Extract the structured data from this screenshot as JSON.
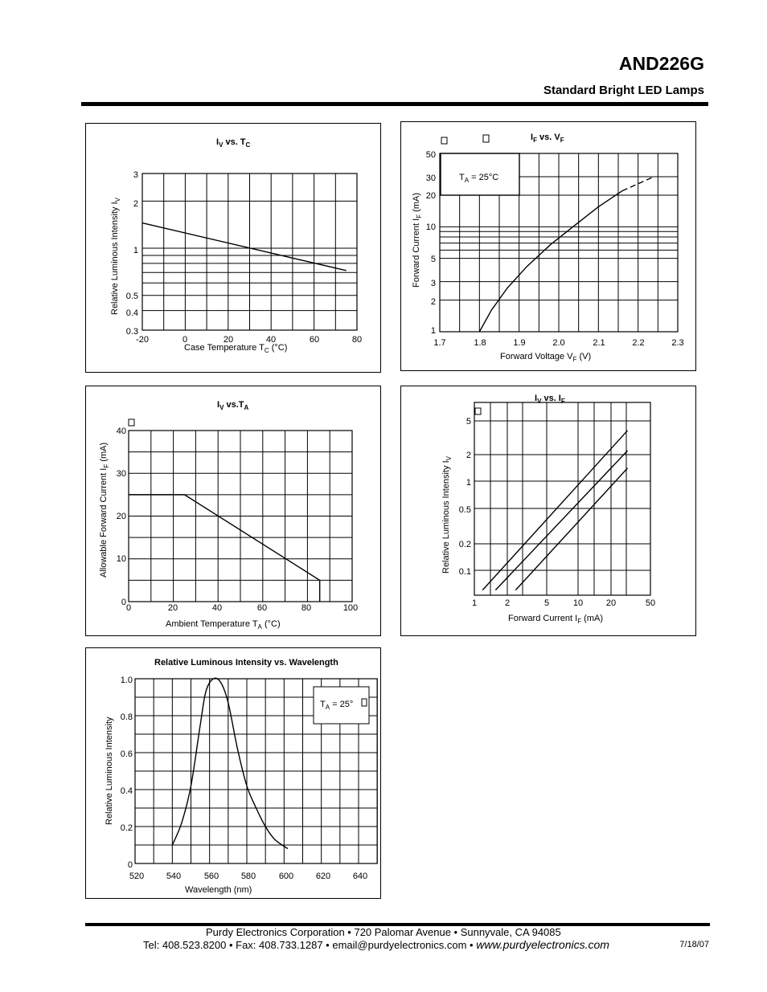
{
  "header": {
    "part_number": "AND226G",
    "subtitle": "Standard Bright LED Lamps"
  },
  "charts": {
    "iv_tc": {
      "title_main": "I",
      "title_sub1": "V",
      "title_mid": " vs. T",
      "title_sub2": "C",
      "ylabel_main": "Relative Luminous Intensity I",
      "ylabel_sub": "V",
      "xlabel_main": "Case Temperature T",
      "xlabel_sub": "C",
      "xlabel_end": " (°C)",
      "x_ticks": [
        "-20",
        "0",
        "20",
        "40",
        "60",
        "80"
      ],
      "y_ticks": [
        "3",
        "2",
        "1",
        "0.5",
        "0.4",
        "0.3"
      ]
    },
    "if_vf": {
      "title_main": "I",
      "title_sub1": "F",
      "title_mid": " vs. V",
      "title_sub2": "F",
      "ylabel_main": "Forward Current  I",
      "ylabel_sub": "F",
      "ylabel_end": "  (mA)",
      "xlabel_main": "Forward Voltage V",
      "xlabel_sub": "F",
      "xlabel_end": "  (V)",
      "x_ticks": [
        "1.7",
        "1.8",
        "1.9",
        "2.0",
        "2.1",
        "2.2",
        "2.3"
      ],
      "y_ticks": [
        "50",
        "30",
        "20",
        "10",
        "5",
        "3",
        "2",
        "1"
      ],
      "condition_main": "T",
      "condition_sub": "A",
      "condition_end": " = 25°C"
    },
    "iv_ta": {
      "title_main": "I",
      "title_sub1": "V",
      "title_mid": " vs.T",
      "title_sub2": "A",
      "ylabel_main": "Allowable Forward Current I",
      "ylabel_sub": "F",
      "ylabel_end": " (mA)",
      "xlabel_main": "Ambient Temperature T",
      "xlabel_sub": "A",
      "xlabel_end": " (°C)",
      "x_ticks": [
        "0",
        "20",
        "40",
        "60",
        "80",
        "100"
      ],
      "y_ticks": [
        "40",
        "30",
        "20",
        "10",
        "0"
      ]
    },
    "iv_if": {
      "title_main": "I",
      "title_sub1": "V",
      "title_mid": " vs. I",
      "title_sub2": "F",
      "ylabel_main": "Relative Luminous Intensity I",
      "ylabel_sub": "V",
      "xlabel_main": "Forward Current I",
      "xlabel_sub": "F",
      "xlabel_end": " (mA)",
      "x_ticks": [
        "1",
        "2",
        "5",
        "10",
        "20",
        "50"
      ],
      "y_ticks": [
        "5",
        "2",
        "1",
        "0.5",
        "0.2",
        "0.1"
      ]
    },
    "wavelength": {
      "title": "Relative Luminous Intensity vs. Wavelength",
      "ylabel": "Relative Luminous Intensity",
      "xlabel": "Wavelength  (nm)",
      "x_ticks": [
        "520",
        "540",
        "560",
        "580",
        "600",
        "620",
        "640"
      ],
      "y_ticks": [
        "1.0",
        "0.8",
        "0.6",
        "0.4",
        "0.2",
        "0"
      ],
      "condition_main": "T",
      "condition_sub": "A",
      "condition_end": " = 25°"
    }
  },
  "chart_data": [
    {
      "type": "line",
      "title": "IV vs. TC",
      "xlabel": "Case Temperature TC (°C)",
      "ylabel": "Relative Luminous Intensity IV",
      "xlim": [
        -20,
        80
      ],
      "ylim": [
        0.3,
        3
      ],
      "yscale": "log",
      "grid": true,
      "series": [
        {
          "x": [
            -20,
            75
          ],
          "y": [
            1.45,
            0.72
          ]
        }
      ]
    },
    {
      "type": "line",
      "title": "IF vs. VF",
      "xlabel": "Forward Voltage VF (V)",
      "ylabel": "Forward Current IF (mA)",
      "xlim": [
        1.7,
        2.3
      ],
      "ylim": [
        1,
        50
      ],
      "yscale": "log",
      "grid": true,
      "series": [
        {
          "x": [
            1.8,
            1.83,
            1.87,
            1.92,
            1.98,
            2.04,
            2.1,
            2.16,
            2.24
          ],
          "y": [
            1,
            1.6,
            2.6,
            4.2,
            6.8,
            10.3,
            15.5,
            22,
            30
          ]
        }
      ]
    },
    {
      "type": "line",
      "title": "IV vs.TA",
      "xlabel": "Ambient Temperature TA (°C)",
      "ylabel": "Allowable Forward Current IF (mA)",
      "xlim": [
        0,
        100
      ],
      "ylim": [
        0,
        40
      ],
      "grid": true,
      "series": [
        {
          "x": [
            0,
            25,
            85.5,
            85.5
          ],
          "y": [
            25,
            25,
            5,
            0
          ]
        }
      ]
    },
    {
      "type": "line",
      "title": "IV vs. IF",
      "xlabel": "Forward Current IF (mA)",
      "ylabel": "Relative Luminous Intensity IV",
      "xscale": "log",
      "yscale": "log",
      "grid": true,
      "series": [
        {
          "x": [
            1.2,
            30
          ],
          "y": [
            0.06,
            3.7
          ]
        },
        {
          "x": [
            1.6,
            30
          ],
          "y": [
            0.06,
            2.2
          ]
        },
        {
          "x": [
            2.5,
            30
          ],
          "y": [
            0.06,
            1.4
          ]
        }
      ]
    },
    {
      "type": "line",
      "title": "Relative Luminous Intensity vs. Wavelength",
      "xlabel": "Wavelength  (nm)",
      "ylabel": "Relative Luminous Intensity",
      "xlim": [
        520,
        650
      ],
      "ylim": [
        0,
        1.0
      ],
      "grid": true,
      "series": [
        {
          "x": [
            540,
            545,
            550,
            555,
            558,
            562,
            566,
            570,
            575,
            580,
            585,
            590,
            595,
            602
          ],
          "y": [
            0.1,
            0.22,
            0.42,
            0.75,
            0.93,
            1.0,
            0.98,
            0.87,
            0.62,
            0.42,
            0.3,
            0.2,
            0.13,
            0.08
          ]
        }
      ]
    }
  ],
  "footer": {
    "line1": "Purdy Electronics Corporation  •  720 Palomar Avenue  •  Sunnyvale, CA 94085",
    "line2": "Tel: 408.523.8200  •  Fax: 408.733.1287  •  email@purdyelectronics.com  •",
    "website": "www.purdyelectronics.com",
    "date": "7/18/07"
  }
}
